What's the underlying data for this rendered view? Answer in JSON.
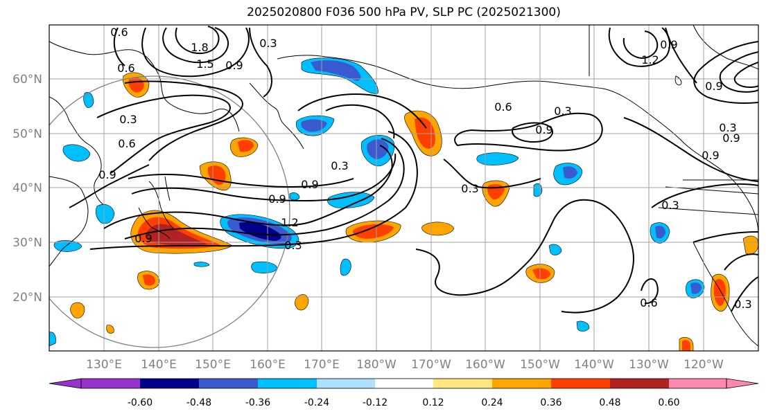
{
  "title": "2025020800 F036 500 hPa PV, SLP PC (2025021300)",
  "lat_labels": [
    "60°N",
    "50°N",
    "40°N",
    "30°N",
    "20°N"
  ],
  "lon_labels": [
    "130°E",
    "140°E",
    "150°E",
    "160°E",
    "170°E",
    "180°W",
    "170°W",
    "160°W",
    "150°W",
    "140°W",
    "130°W",
    "120°W"
  ],
  "colorbar": {
    "ticks": [
      "-0.60",
      "-0.48",
      "-0.36",
      "-0.24",
      "-0.12",
      "0.12",
      "0.24",
      "0.36",
      "0.48",
      "0.60"
    ],
    "colors": [
      "#9932cc",
      "#00008b",
      "#3a5bd0",
      "#00bfff",
      "#b0e0ff",
      "#ffffff",
      "#ffe680",
      "#ffa500",
      "#ff3f00",
      "#b22222",
      "#ff88b0"
    ]
  },
  "contour_labels": [
    "0.6",
    "1.8",
    "1.5",
    "0.3",
    "0.6",
    "0.3",
    "0.6",
    "0.9",
    "0.9",
    "1.2",
    "0.3",
    "0.9",
    "0.3",
    "0.9",
    "0.3",
    "0.6",
    "0.3",
    "0.9",
    "0.9",
    "0.3",
    "0.6",
    "0.3",
    "1.2",
    "0.9",
    "0.9",
    "0.3",
    "0.9",
    "0.9"
  ],
  "palette": {
    "lightblue": "#b0e0ff",
    "cyan": "#00bfff",
    "blue": "#3a5bd0",
    "navy": "#00008b",
    "yellow": "#ffe680",
    "orange": "#ffa500",
    "red": "#ff3f00",
    "darkred": "#b22222"
  }
}
